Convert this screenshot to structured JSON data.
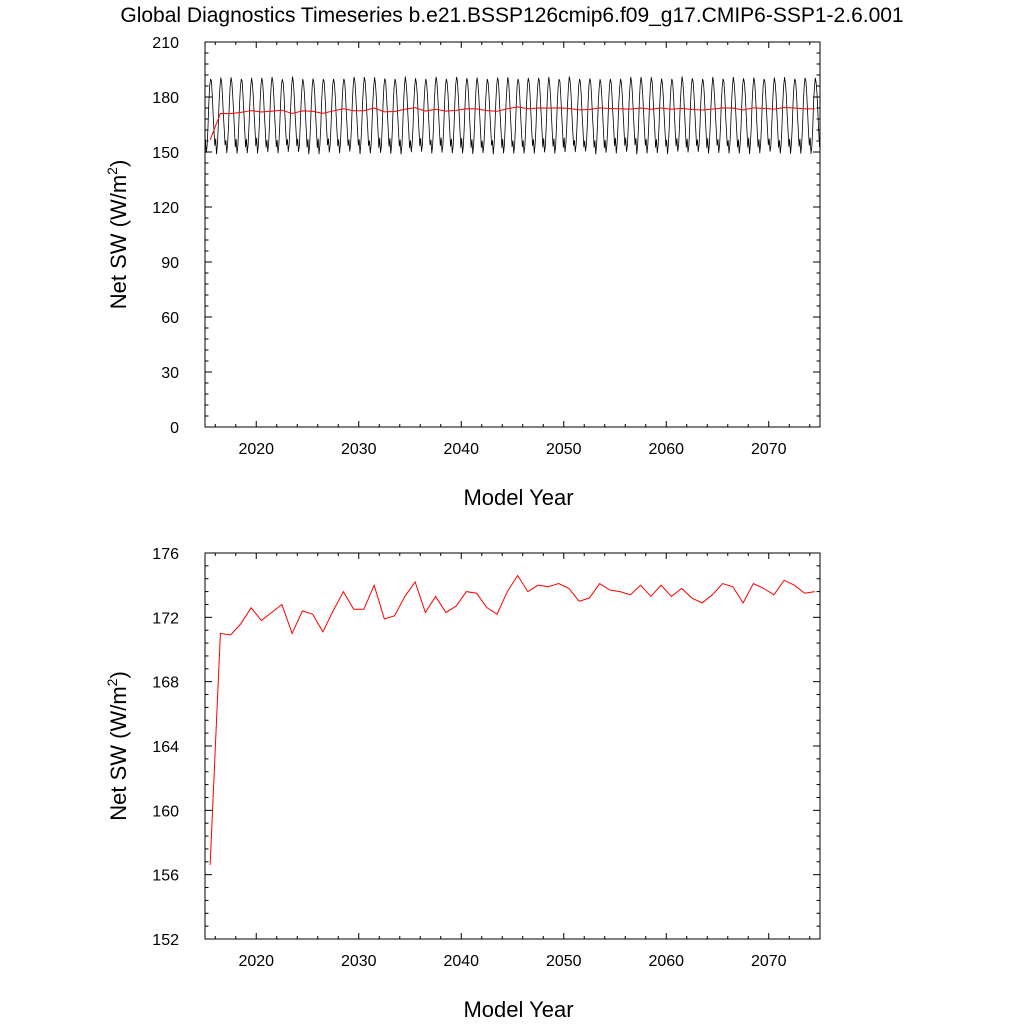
{
  "title": "Global Diagnostics Timeseries b.e21.BSSP126cmip6.f09_g17.CMIP6-SSP1-2.6.001",
  "colors": {
    "monthly": "#000000",
    "annual": "#ff0000",
    "frame": "#000000"
  },
  "chart_data": [
    {
      "type": "line",
      "xlabel": "Model Year",
      "ylabel": "Net SW (W/m",
      "ylabel_sup": "2",
      "ylabel_end": ")",
      "xlim": [
        2015,
        2075
      ],
      "ylim": [
        0,
        210
      ],
      "x_ticks": [
        2020,
        2030,
        2040,
        2050,
        2060,
        2070
      ],
      "x_tick_labels": [
        "2020",
        "2030",
        "2040",
        "2050",
        "2060",
        "2070"
      ],
      "y_ticks": [
        0,
        30,
        60,
        90,
        120,
        150,
        180,
        210
      ],
      "y_tick_labels": [
        "0",
        "30",
        "60",
        "90",
        "120",
        "150",
        "180",
        "210"
      ],
      "series": [
        {
          "kind": "monthly",
          "color": "#000000",
          "description": "monthly global mean, seasonal cycle between about 149 and 191",
          "start_year": 2015,
          "seasonal_min": 149.5,
          "seasonal_max": 190.5,
          "monthly_cycle": [
            157,
            149.5,
            154,
            164,
            177,
            186,
            190.5,
            188,
            181,
            171,
            162,
            153
          ]
        },
        {
          "kind": "annual",
          "color": "#ff0000",
          "x": [
            2015.5,
            2016.5,
            2017.5,
            2018.5,
            2019.5,
            2020.5,
            2021.5,
            2022.5,
            2023.5,
            2024.5,
            2025.5,
            2026.5,
            2027.5,
            2028.5,
            2029.5,
            2030.5,
            2031.5,
            2032.5,
            2033.5,
            2034.5,
            2035.5,
            2036.5,
            2037.5,
            2038.5,
            2039.5,
            2040.5,
            2041.5,
            2042.5,
            2043.5,
            2044.5,
            2045.5,
            2046.5,
            2047.5,
            2048.5,
            2049.5,
            2050.5,
            2051.5,
            2052.5,
            2053.5,
            2054.5,
            2055.5,
            2056.5,
            2057.5,
            2058.5,
            2059.5,
            2060.5,
            2061.5,
            2062.5,
            2063.5,
            2064.5,
            2065.5,
            2066.5,
            2067.5,
            2068.5,
            2069.5,
            2070.5,
            2071.5,
            2072.5,
            2073.5,
            2074.5
          ],
          "values": [
            156.6,
            171.0,
            170.9,
            171.6,
            172.6,
            171.8,
            172.3,
            172.8,
            171.0,
            172.4,
            172.2,
            171.1,
            172.4,
            173.6,
            172.5,
            172.5,
            174.0,
            171.9,
            172.1,
            173.3,
            174.2,
            172.3,
            173.3,
            172.3,
            172.7,
            173.6,
            173.5,
            172.6,
            172.2,
            173.6,
            174.6,
            173.6,
            174.0,
            173.9,
            174.1,
            173.8,
            173.0,
            173.2,
            174.1,
            173.7,
            173.6,
            173.4,
            174.0,
            173.3,
            174.0,
            173.3,
            173.8,
            173.2,
            172.9,
            173.4,
            174.1,
            173.9,
            172.9,
            174.1,
            173.8,
            173.4,
            174.3,
            174.0,
            173.5,
            173.6
          ]
        }
      ]
    },
    {
      "type": "line",
      "xlabel": "Model Year",
      "ylabel": "Net SW (W/m",
      "ylabel_sup": "2",
      "ylabel_end": ")",
      "xlim": [
        2015,
        2075
      ],
      "ylim": [
        152,
        176
      ],
      "x_ticks": [
        2020,
        2030,
        2040,
        2050,
        2060,
        2070
      ],
      "x_tick_labels": [
        "2020",
        "2030",
        "2040",
        "2050",
        "2060",
        "2070"
      ],
      "y_ticks": [
        152,
        156,
        160,
        164,
        168,
        172,
        176
      ],
      "y_tick_labels": [
        "152",
        "156",
        "160",
        "164",
        "168",
        "172",
        "176"
      ],
      "series": [
        {
          "kind": "annual",
          "color": "#ff0000",
          "x": [
            2015.5,
            2016.5,
            2017.5,
            2018.5,
            2019.5,
            2020.5,
            2021.5,
            2022.5,
            2023.5,
            2024.5,
            2025.5,
            2026.5,
            2027.5,
            2028.5,
            2029.5,
            2030.5,
            2031.5,
            2032.5,
            2033.5,
            2034.5,
            2035.5,
            2036.5,
            2037.5,
            2038.5,
            2039.5,
            2040.5,
            2041.5,
            2042.5,
            2043.5,
            2044.5,
            2045.5,
            2046.5,
            2047.5,
            2048.5,
            2049.5,
            2050.5,
            2051.5,
            2052.5,
            2053.5,
            2054.5,
            2055.5,
            2056.5,
            2057.5,
            2058.5,
            2059.5,
            2060.5,
            2061.5,
            2062.5,
            2063.5,
            2064.5,
            2065.5,
            2066.5,
            2067.5,
            2068.5,
            2069.5,
            2070.5,
            2071.5,
            2072.5,
            2073.5,
            2074.5
          ],
          "values": [
            156.6,
            171.0,
            170.9,
            171.6,
            172.6,
            171.8,
            172.3,
            172.8,
            171.0,
            172.4,
            172.2,
            171.1,
            172.4,
            173.6,
            172.5,
            172.5,
            174.0,
            171.9,
            172.1,
            173.3,
            174.2,
            172.3,
            173.3,
            172.3,
            172.7,
            173.6,
            173.5,
            172.6,
            172.2,
            173.6,
            174.6,
            173.6,
            174.0,
            173.9,
            174.1,
            173.8,
            173.0,
            173.2,
            174.1,
            173.7,
            173.6,
            173.4,
            174.0,
            173.3,
            174.0,
            173.3,
            173.8,
            173.2,
            172.9,
            173.4,
            174.1,
            173.9,
            172.9,
            174.1,
            173.8,
            173.4,
            174.3,
            174.0,
            173.5,
            173.6
          ]
        }
      ]
    }
  ]
}
